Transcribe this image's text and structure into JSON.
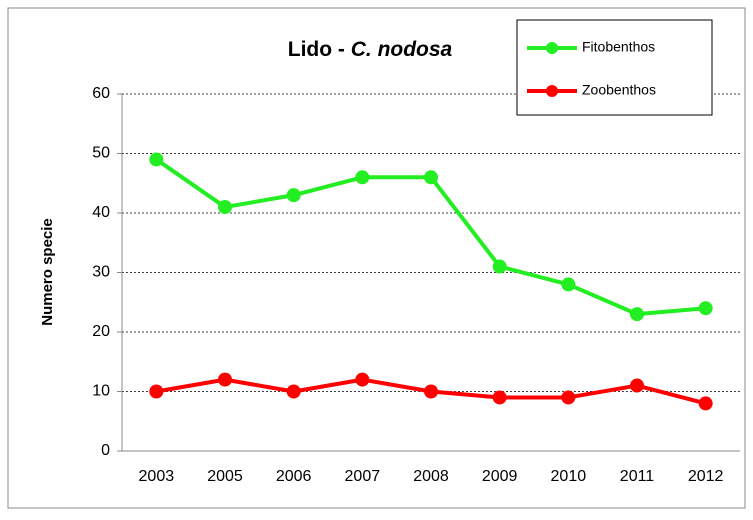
{
  "chart_data": {
    "type": "line",
    "title": "Lido - C. nodosa",
    "ylabel": "Numero specie",
    "categories": [
      "2003",
      "2005",
      "2006",
      "2007",
      "2008",
      "2009",
      "2010",
      "2011",
      "2012"
    ],
    "series": [
      {
        "name": "Fitobenthos",
        "color": "#22ee22",
        "values": [
          49,
          41,
          43,
          46,
          46,
          31,
          28,
          23,
          24
        ]
      },
      {
        "name": "Zoobenthos",
        "color": "#ff0000",
        "values": [
          10,
          12,
          10,
          12,
          10,
          9,
          9,
          11,
          8
        ]
      }
    ],
    "ylim": [
      0,
      60
    ],
    "yticks": [
      0,
      10,
      20,
      30,
      40,
      50,
      60
    ],
    "grid": true,
    "legend": "upper right"
  }
}
